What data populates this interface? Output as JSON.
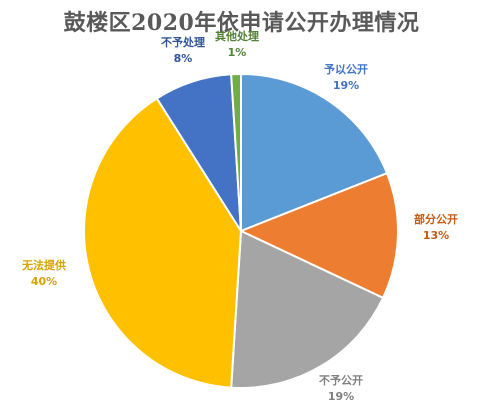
{
  "chart_data": {
    "type": "pie",
    "title": "鼓楼区2020年依申请公开办理情况",
    "start_angle_deg": 0,
    "direction": "clockwise",
    "slices": [
      {
        "label": "予以公开",
        "value": 19,
        "display": "19%",
        "color": "#5B9BD5",
        "label_color": "#4472C4"
      },
      {
        "label": "部分公开",
        "value": 13,
        "display": "13%",
        "color": "#ED7D31",
        "label_color": "#C55A11"
      },
      {
        "label": "不予公开",
        "value": 19,
        "display": "19%",
        "color": "#A5A5A5",
        "label_color": "#7F7F7F"
      },
      {
        "label": "无法提供",
        "value": 40,
        "display": "40%",
        "color": "#FFC000",
        "label_color": "#D6A400"
      },
      {
        "label": "不予处理",
        "value": 8,
        "display": "8%",
        "color": "#4472C4",
        "label_color": "#2F5597"
      },
      {
        "label": "其他处理",
        "value": 1,
        "display": "1%",
        "color": "#70AD47",
        "label_color": "#548235"
      }
    ]
  }
}
